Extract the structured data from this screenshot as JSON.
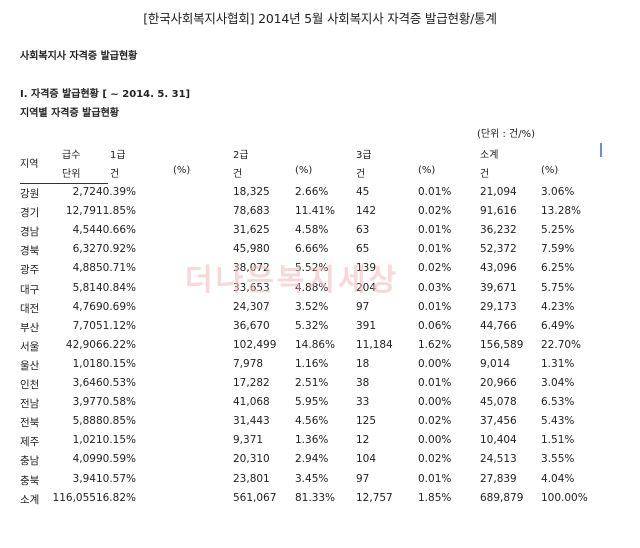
{
  "page": {
    "title": "[한국사회복지사협회] 2014년 5월 사회복지사 자격증 발급현황/통계",
    "section_heading": "사회복지사 자격증 발급현황",
    "subsection_heading": "Ⅰ. 자격증 발급현황 [ ~ 2014. 5. 31]",
    "table_heading": "지역별 자격증 발급현황",
    "unit_note": "(단위 : 건/%)",
    "watermark": "더나은복지세상"
  },
  "headers": {
    "region": "지역",
    "grade_col": "급수",
    "unit_col": "단위",
    "grade1": "1급",
    "grade1_count": "건",
    "grade1_pct": "(%)",
    "grade2": "2급",
    "grade2_count": "건",
    "grade2_pct": "(%)",
    "grade3": "3급",
    "grade3_count": "건",
    "grade3_pct": "(%)",
    "total": "소계",
    "total_count": "건",
    "total_pct": "(%)"
  },
  "rows": [
    {
      "region": "강원",
      "g1": "2,7240.39%",
      "g2c": "18,325",
      "g2p": "2.66%",
      "g3c": "45",
      "g3p": "0.01%",
      "tc": "21,094",
      "tp": "3.06%"
    },
    {
      "region": "경기",
      "g1": "12,7911.85%",
      "g2c": "78,683",
      "g2p": "11.41%",
      "g3c": "142",
      "g3p": "0.02%",
      "tc": "91,616",
      "tp": "13.28%"
    },
    {
      "region": "경남",
      "g1": "4,5440.66%",
      "g2c": "31,625",
      "g2p": "4.58%",
      "g3c": "63",
      "g3p": "0.01%",
      "tc": "36,232",
      "tp": "5.25%"
    },
    {
      "region": "경북",
      "g1": "6,3270.92%",
      "g2c": "45,980",
      "g2p": "6.66%",
      "g3c": "65",
      "g3p": "0.01%",
      "tc": "52,372",
      "tp": "7.59%"
    },
    {
      "region": "광주",
      "g1": "4,8850.71%",
      "g2c": "38,072",
      "g2p": "5.52%",
      "g3c": "139",
      "g3p": "0.02%",
      "tc": "43,096",
      "tp": "6.25%"
    },
    {
      "region": "대구",
      "g1": "5,8140.84%",
      "g2c": "33,653",
      "g2p": "4.88%",
      "g3c": "204",
      "g3p": "0.03%",
      "tc": "39,671",
      "tp": "5.75%"
    },
    {
      "region": "대전",
      "g1": "4,7690.69%",
      "g2c": "24,307",
      "g2p": "3.52%",
      "g3c": "97",
      "g3p": "0.01%",
      "tc": "29,173",
      "tp": "4.23%"
    },
    {
      "region": "부산",
      "g1": "7,7051.12%",
      "g2c": "36,670",
      "g2p": "5.32%",
      "g3c": "391",
      "g3p": "0.06%",
      "tc": "44,766",
      "tp": "6.49%"
    },
    {
      "region": "서울",
      "g1": "42,9066.22%",
      "g2c": "102,499",
      "g2p": "14.86%",
      "g3c": "11,184",
      "g3p": "1.62%",
      "tc": "156,589",
      "tp": "22.70%"
    },
    {
      "region": "울산",
      "g1": "1,0180.15%",
      "g2c": "7,978",
      "g2p": "1.16%",
      "g3c": "18",
      "g3p": "0.00%",
      "tc": "9,014",
      "tp": "1.31%"
    },
    {
      "region": "인천",
      "g1": "3,6460.53%",
      "g2c": "17,282",
      "g2p": "2.51%",
      "g3c": "38",
      "g3p": "0.01%",
      "tc": "20,966",
      "tp": "3.04%"
    },
    {
      "region": "전남",
      "g1": "3,9770.58%",
      "g2c": "41,068",
      "g2p": "5.95%",
      "g3c": "33",
      "g3p": "0.00%",
      "tc": "45,078",
      "tp": "6.53%"
    },
    {
      "region": "전북",
      "g1": "5,8880.85%",
      "g2c": "31,443",
      "g2p": "4.56%",
      "g3c": "125",
      "g3p": "0.02%",
      "tc": "37,456",
      "tp": "5.43%"
    },
    {
      "region": "제주",
      "g1": "1,0210.15%",
      "g2c": "9,371",
      "g2p": "1.36%",
      "g3c": "12",
      "g3p": "0.00%",
      "tc": "10,404",
      "tp": "1.51%"
    },
    {
      "region": "충남",
      "g1": "4,0990.59%",
      "g2c": "20,310",
      "g2p": "2.94%",
      "g3c": "104",
      "g3p": "0.02%",
      "tc": "24,513",
      "tp": "3.55%"
    },
    {
      "region": "충북",
      "g1": "3,9410.57%",
      "g2c": "23,801",
      "g2p": "3.45%",
      "g3c": "97",
      "g3p": "0.01%",
      "tc": "27,839",
      "tp": "4.04%"
    },
    {
      "region": "소계",
      "g1": "116,05516.82%",
      "g2c": "561,067",
      "g2p": "81.33%",
      "g3c": "12,757",
      "g3p": "1.85%",
      "tc": "689,879",
      "tp": "100.00%"
    }
  ]
}
